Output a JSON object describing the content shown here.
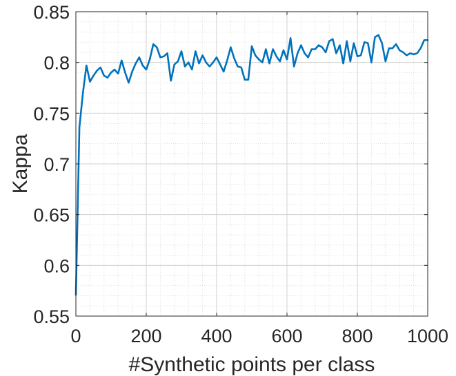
{
  "chart_data": {
    "type": "line",
    "title": "",
    "xlabel": "#Synthetic points per class",
    "ylabel": "Kappa",
    "xlim": [
      0,
      1000
    ],
    "ylim": [
      0.55,
      0.85
    ],
    "xticks": [
      0,
      200,
      400,
      600,
      800,
      1000
    ],
    "xtick_labels": [
      "0",
      "200",
      "400",
      "600",
      "800",
      "1000"
    ],
    "yticks": [
      0.55,
      0.6,
      0.65,
      0.7,
      0.75,
      0.8,
      0.85
    ],
    "ytick_labels": [
      "0.55",
      "0.6",
      "0.65",
      "0.7",
      "0.75",
      "0.8",
      "0.85"
    ],
    "grid": true,
    "minor_grid": true,
    "line_color": "#0072bd",
    "series": [
      {
        "x": [
          0,
          10,
          20,
          30,
          40,
          50,
          60,
          70,
          80,
          90,
          100,
          110,
          120,
          130,
          140,
          150,
          160,
          170,
          180,
          190,
          200,
          210,
          220,
          230,
          240,
          250,
          260,
          270,
          280,
          290,
          300,
          310,
          320,
          330,
          340,
          350,
          360,
          370,
          380,
          390,
          400,
          410,
          420,
          430,
          440,
          450,
          460,
          470,
          480,
          490,
          500,
          510,
          520,
          530,
          540,
          550,
          560,
          570,
          580,
          590,
          600,
          610,
          620,
          630,
          640,
          650,
          660,
          670,
          680,
          690,
          700,
          710,
          720,
          730,
          740,
          750,
          760,
          770,
          780,
          790,
          800,
          810,
          820,
          830,
          840,
          850,
          860,
          870,
          880,
          890,
          900,
          910,
          920,
          930,
          940,
          950,
          960,
          970,
          980,
          990,
          1000
        ],
        "values": [
          0.571,
          0.736,
          0.77,
          0.797,
          0.781,
          0.787,
          0.792,
          0.795,
          0.787,
          0.785,
          0.79,
          0.793,
          0.789,
          0.802,
          0.79,
          0.78,
          0.791,
          0.799,
          0.805,
          0.797,
          0.793,
          0.803,
          0.818,
          0.815,
          0.805,
          0.806,
          0.809,
          0.782,
          0.798,
          0.801,
          0.811,
          0.796,
          0.8,
          0.793,
          0.811,
          0.799,
          0.807,
          0.8,
          0.796,
          0.8,
          0.805,
          0.798,
          0.791,
          0.802,
          0.815,
          0.804,
          0.796,
          0.795,
          0.783,
          0.783,
          0.816,
          0.807,
          0.803,
          0.8,
          0.813,
          0.799,
          0.813,
          0.806,
          0.801,
          0.812,
          0.803,
          0.824,
          0.796,
          0.809,
          0.817,
          0.809,
          0.805,
          0.813,
          0.813,
          0.817,
          0.815,
          0.81,
          0.821,
          0.823,
          0.809,
          0.817,
          0.799,
          0.821,
          0.801,
          0.819,
          0.806,
          0.807,
          0.82,
          0.819,
          0.8,
          0.825,
          0.827,
          0.819,
          0.801,
          0.814,
          0.814,
          0.818,
          0.812,
          0.81,
          0.807,
          0.809,
          0.808,
          0.809,
          0.814,
          0.822,
          0.822
        ]
      }
    ]
  }
}
